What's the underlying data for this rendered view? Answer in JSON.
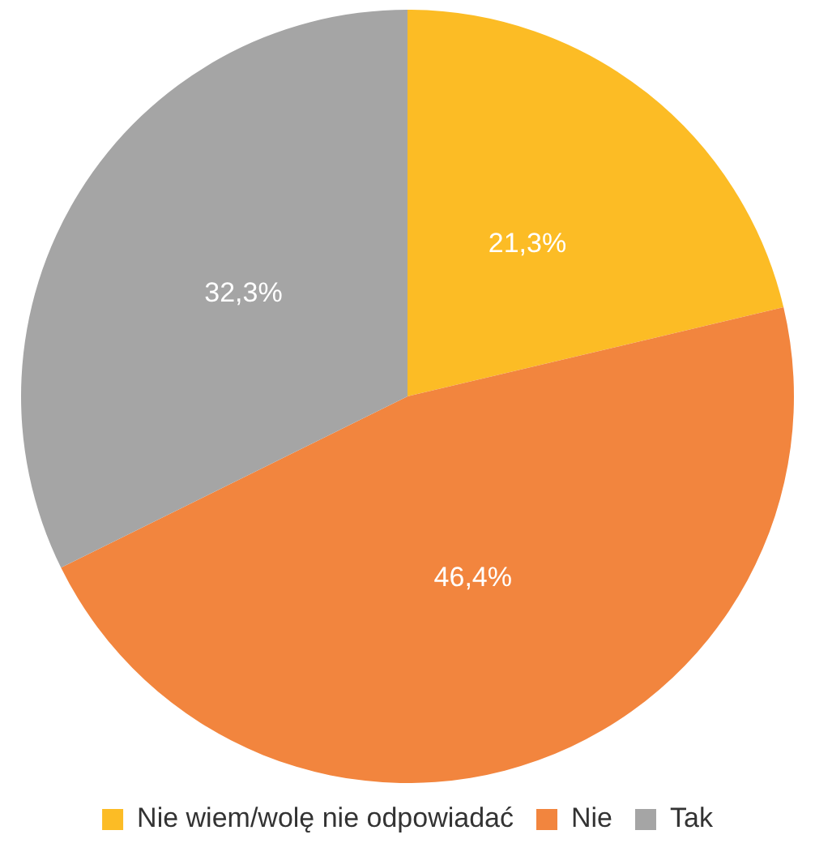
{
  "chart_data": {
    "type": "pie",
    "categories": [
      "Nie wiem/wolę nie odpowiadać",
      "Nie",
      "Tak"
    ],
    "values": [
      21.3,
      46.4,
      32.3
    ],
    "colors": [
      "#fcbc25",
      "#f2853e",
      "#a5a5a5"
    ],
    "value_labels": [
      "21,3%",
      "46,4%",
      "32,3%"
    ],
    "legend": "bottom"
  }
}
